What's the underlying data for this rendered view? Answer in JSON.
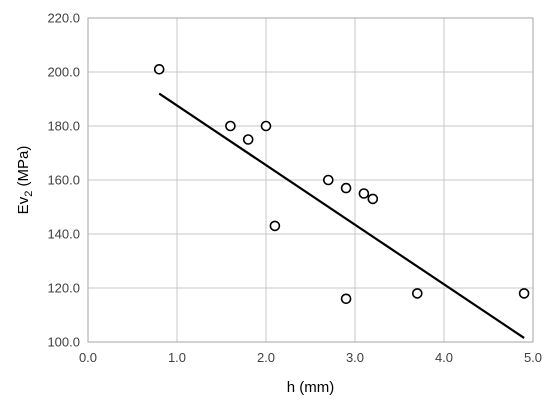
{
  "chart_data": {
    "type": "scatter",
    "title": "",
    "xlabel": "h (mm)",
    "ylabel_main": "Ev",
    "ylabel_sub": "2",
    "ylabel_suffix": " (MPa)",
    "xlim": [
      0.0,
      5.0
    ],
    "ylim": [
      100.0,
      220.0
    ],
    "x_ticks": [
      "0.0",
      "1.0",
      "2.0",
      "3.0",
      "4.0",
      "5.0"
    ],
    "y_ticks": [
      "100.0",
      "120.0",
      "140.0",
      "160.0",
      "180.0",
      "200.0",
      "220.0"
    ],
    "grid": true,
    "legend": "none",
    "series": [
      {
        "x": [
          0.8,
          1.6,
          1.8,
          2.0,
          2.1,
          2.7,
          2.9,
          2.9,
          3.1,
          3.2,
          3.7,
          4.9
        ],
        "y": [
          201,
          180,
          175,
          180,
          143,
          160,
          157,
          116,
          155,
          153,
          118,
          118
        ],
        "marker": "open-circle",
        "color": "#000000"
      }
    ],
    "trendline": {
      "x": [
        0.8,
        4.9
      ],
      "y": [
        192,
        101.5
      ],
      "color": "#000000"
    }
  }
}
